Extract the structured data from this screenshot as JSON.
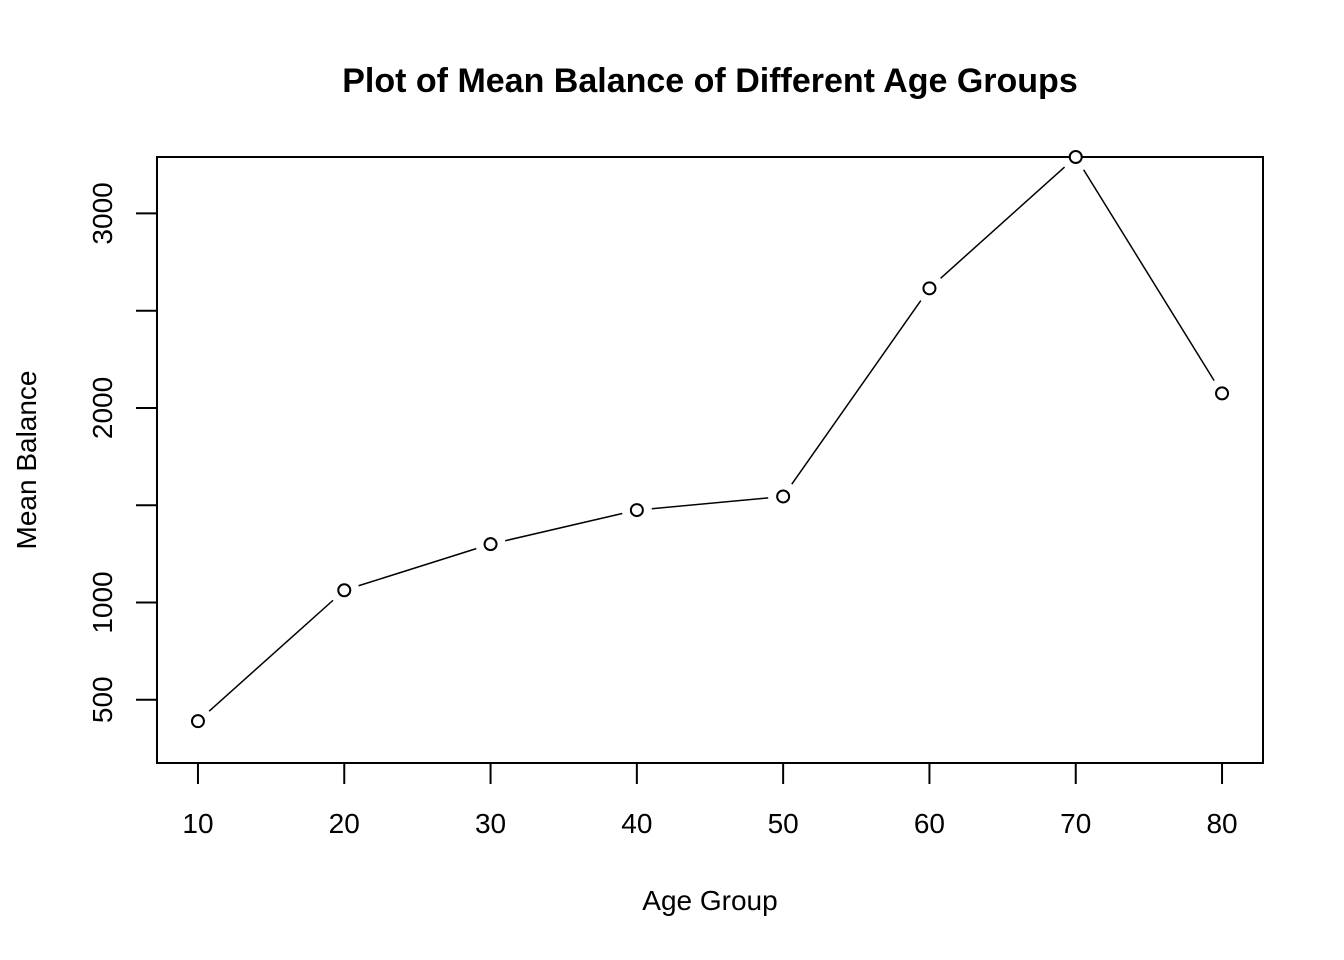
{
  "chart_data": {
    "type": "line",
    "title": "Plot of Mean Balance of Different Age Groups",
    "xlabel": "Age Group",
    "ylabel": "Mean Balance",
    "x": [
      10,
      20,
      30,
      40,
      50,
      60,
      70,
      80
    ],
    "series": [
      {
        "values": [
          390,
          1063,
          1300,
          1475,
          1545,
          2615,
          3290,
          2075
        ]
      }
    ],
    "xticks": [
      "10",
      "20",
      "30",
      "40",
      "50",
      "60",
      "70",
      "80"
    ],
    "yticks": [
      500,
      1000,
      1500,
      2000,
      2500,
      3000
    ],
    "ytick_labels": [
      "500",
      "1000",
      "",
      "2000",
      "",
      "3000"
    ],
    "xlim": [
      7.2,
      82.8
    ],
    "ylim": [
      175,
      3290
    ],
    "grid": false,
    "marker": "open-circle",
    "line_color": "#000000"
  }
}
